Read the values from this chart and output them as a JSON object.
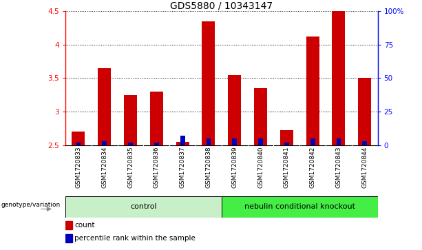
{
  "title": "GDS5880 / 10343147",
  "samples": [
    "GSM1720833",
    "GSM1720834",
    "GSM1720835",
    "GSM1720836",
    "GSM1720837",
    "GSM1720838",
    "GSM1720839",
    "GSM1720840",
    "GSM1720841",
    "GSM1720842",
    "GSM1720843",
    "GSM1720844"
  ],
  "count_values": [
    2.7,
    3.65,
    3.25,
    3.3,
    2.55,
    4.35,
    3.55,
    3.35,
    2.72,
    4.12,
    4.5,
    3.5
  ],
  "percentile_values": [
    2,
    3,
    2,
    2,
    7,
    5,
    5,
    5,
    2,
    5,
    5,
    3
  ],
  "ymin": 2.5,
  "ymax": 4.5,
  "yticks": [
    2.5,
    3.0,
    3.5,
    4.0,
    4.5
  ],
  "ytick_labels": [
    "2.5",
    "3",
    "3.5",
    "4",
    "4.5"
  ],
  "right_yticks": [
    0,
    25,
    50,
    75,
    100
  ],
  "right_ytick_labels": [
    "0",
    "25",
    "50",
    "75",
    "100%"
  ],
  "bar_color_red": "#cc0000",
  "bar_color_blue": "#0000bb",
  "control_label": "control",
  "knockout_label": "nebulin conditional knockout",
  "genotype_label": "genotype/variation",
  "legend_count": "count",
  "legend_percentile": "percentile rank within the sample",
  "bar_width": 0.5,
  "blue_bar_width": 0.18,
  "group_bg_control": "#c8f0c8",
  "group_bg_knockout": "#44ee44",
  "sample_bg": "#cccccc",
  "title_fontsize": 10,
  "tick_fontsize": 7.5,
  "sample_fontsize": 6.5,
  "group_fontsize": 8,
  "legend_fontsize": 7.5
}
